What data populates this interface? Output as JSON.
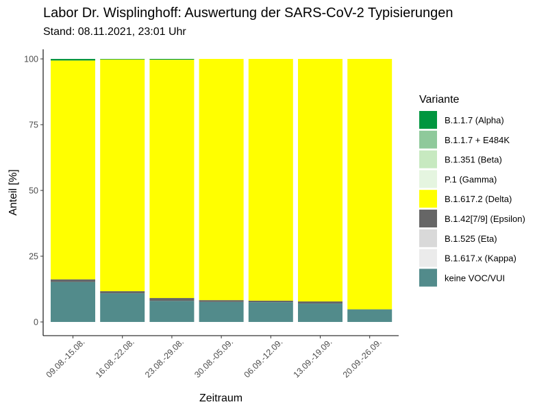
{
  "title": "Labor Dr. Wisplinghoff: Auswertung der SARS-CoV-2 Typisierungen",
  "subtitle": "Stand: 08.11.2021, 23:01 Uhr",
  "chart_data": {
    "type": "bar",
    "stacked": true,
    "xlabel": "Zeitraum",
    "ylabel": "Anteil [%]",
    "ylim": [
      0,
      100
    ],
    "yticks": [
      "0",
      "25",
      "50",
      "75",
      "100"
    ],
    "grid": false,
    "legend_title": "Variante",
    "legend_position": "right",
    "categories": [
      "09.08.-15.08.",
      "16.08.-22.08.",
      "23.08.-29.08.",
      "30.08.-05.09.",
      "06.09.-12.09.",
      "13.09.-19.09.",
      "20.09.-26.09."
    ],
    "series": [
      {
        "name": "keine VOC/VUI",
        "color": "#528b8b",
        "values": [
          15.2,
          10.9,
          8.0,
          7.6,
          7.5,
          7.0,
          4.8
        ]
      },
      {
        "name": "B.1.617.x (Kappa)",
        "color": "#ebebeb",
        "values": [
          0,
          0,
          0,
          0,
          0,
          0,
          0
        ]
      },
      {
        "name": "B.1.525 (Eta)",
        "color": "#d9d9d9",
        "values": [
          0,
          0,
          0,
          0,
          0,
          0,
          0
        ]
      },
      {
        "name": "B.1.42[7/9] (Epsilon)",
        "color": "#666666",
        "values": [
          1.0,
          0.8,
          1.1,
          0.7,
          0.6,
          0.8,
          0
        ]
      },
      {
        "name": "B.1.617.2 (Delta)",
        "color": "#ffff00",
        "values": [
          83.2,
          88.1,
          90.6,
          91.7,
          91.9,
          92.2,
          95.2
        ]
      },
      {
        "name": "P.1 (Gamma)",
        "color": "#e5f5e0",
        "values": [
          0,
          0,
          0,
          0,
          0,
          0,
          0
        ]
      },
      {
        "name": "B.1.351 (Beta)",
        "color": "#c7e9c0",
        "values": [
          0,
          0,
          0,
          0,
          0,
          0,
          0
        ]
      },
      {
        "name": "B.1.1.7 + E484K",
        "color": "#8fc99b",
        "values": [
          0,
          0,
          0,
          0,
          0,
          0,
          0
        ]
      },
      {
        "name": "B.1.1.7 (Alpha)",
        "color": "#00963f",
        "values": [
          0.6,
          0.2,
          0.3,
          0,
          0,
          0,
          0
        ]
      }
    ],
    "legend_order": [
      "B.1.1.7 (Alpha)",
      "B.1.1.7 + E484K",
      "B.1.351 (Beta)",
      "P.1 (Gamma)",
      "B.1.617.2 (Delta)",
      "B.1.42[7/9] (Epsilon)",
      "B.1.525 (Eta)",
      "B.1.617.x (Kappa)",
      "keine VOC/VUI"
    ]
  }
}
